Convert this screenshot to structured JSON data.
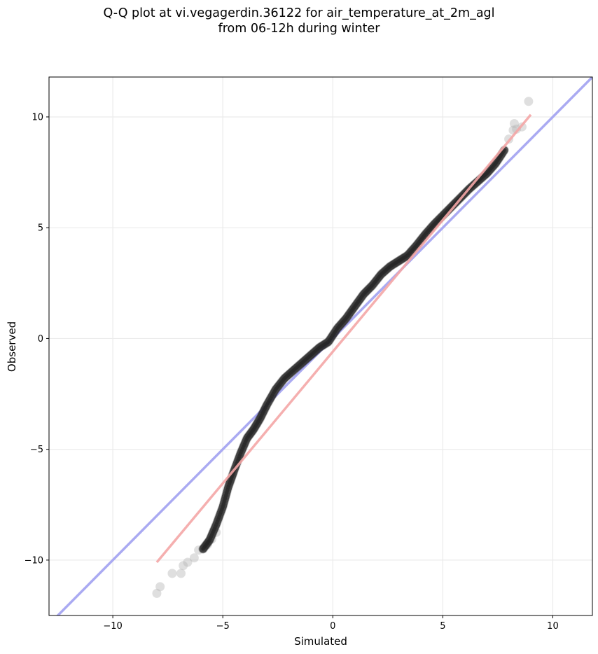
{
  "chart_data": {
    "type": "scatter",
    "title_lines": [
      "Q-Q plot at vi.vegagerdin.36122 for air_temperature_at_2m_agl",
      "from 06-12h during winter"
    ],
    "xlabel": "Simulated",
    "ylabel": "Observed",
    "xlim": [
      -12.9,
      11.8
    ],
    "ylim": [
      -12.5,
      11.8
    ],
    "xticks": [
      -10,
      -5,
      0,
      5,
      10
    ],
    "yticks": [
      -10,
      -5,
      0,
      5,
      10
    ],
    "xtick_labels": [
      "−10",
      "−5",
      "0",
      "5",
      "10"
    ],
    "ytick_labels": [
      "−10",
      "−5",
      "0",
      "5",
      "10"
    ],
    "grid": true,
    "reference_line": {
      "type": "identity",
      "color": "#aaaaf2"
    },
    "fit_line": {
      "x": [
        -8.0,
        9.0
      ],
      "y": [
        -10.1,
        10.1
      ],
      "color": "#f4a6a6"
    },
    "quantile_curve": {
      "x": [
        -5.9,
        -5.6,
        -5.3,
        -5.0,
        -4.75,
        -4.5,
        -4.2,
        -3.9,
        -3.6,
        -3.3,
        -3.0,
        -2.6,
        -2.2,
        -1.8,
        -1.4,
        -1.0,
        -0.6,
        -0.2,
        0.2,
        0.6,
        1.0,
        1.4,
        1.8,
        2.2,
        2.6,
        3.0,
        3.4,
        3.8,
        4.2,
        4.6,
        5.0,
        5.4,
        5.8,
        6.2,
        6.6,
        7.0,
        7.4,
        7.8
      ],
      "y": [
        -9.5,
        -9.1,
        -8.4,
        -7.6,
        -6.7,
        -6.0,
        -5.2,
        -4.5,
        -4.1,
        -3.6,
        -3.0,
        -2.3,
        -1.8,
        -1.45,
        -1.1,
        -0.75,
        -0.4,
        -0.15,
        0.45,
        0.9,
        1.45,
        2.0,
        2.4,
        2.9,
        3.25,
        3.5,
        3.75,
        4.2,
        4.7,
        5.15,
        5.55,
        5.95,
        6.35,
        6.75,
        7.1,
        7.45,
        7.9,
        8.5
      ],
      "color": "#1e1e1e"
    },
    "tail_points": {
      "x": [
        -8.0,
        -7.85,
        -7.3,
        -6.9,
        -6.8,
        -6.6,
        -6.3,
        -6.1,
        -5.9,
        -5.7,
        -5.5,
        -5.3,
        8.2,
        8.35,
        8.6,
        8.0,
        8.25,
        8.9
      ],
      "y": [
        -11.5,
        -11.2,
        -10.6,
        -10.6,
        -10.25,
        -10.1,
        -9.9,
        -9.55,
        -9.5,
        -9.3,
        -9.05,
        -8.75,
        9.4,
        9.45,
        9.55,
        9.0,
        9.7,
        10.7
      ],
      "color": "#b8b8b8"
    }
  }
}
